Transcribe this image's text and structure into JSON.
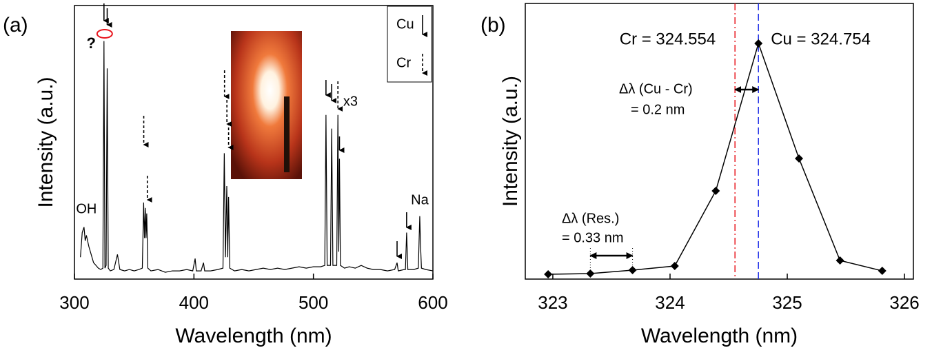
{
  "chart_data": [
    {
      "type": "line",
      "panel_label": "(a)",
      "xlabel": "Wavelength (nm)",
      "ylabel": "Intensity (a.u.)",
      "xlim": [
        300,
        600
      ],
      "xticks": [
        300,
        400,
        500,
        600
      ],
      "ylim": [
        0,
        100
      ],
      "x": [
        305,
        306.5,
        308,
        309,
        310,
        312,
        314,
        316,
        318,
        320,
        322,
        323.8,
        324.7,
        325.5,
        326.5,
        327.4,
        328.3,
        330,
        333,
        336,
        338,
        342,
        346,
        350,
        354,
        356.8,
        357.9,
        358.6,
        359.3,
        359.9,
        360.5,
        361.4,
        364,
        370,
        376,
        382,
        388,
        394,
        399,
        401,
        402,
        406,
        408,
        409,
        414,
        420,
        424.3,
        425.4,
        426.4,
        427.5,
        428.3,
        429,
        430,
        434,
        440,
        446,
        452,
        458,
        464,
        470,
        476,
        482,
        488,
        494,
        500,
        506,
        509.5,
        510.5,
        511.5,
        514.3,
        515.3,
        516.3,
        519.5,
        520.5,
        521.2,
        521.8,
        522.6,
        526,
        530,
        535,
        540,
        545,
        550,
        556,
        562,
        568,
        570,
        571,
        576,
        577,
        578,
        579,
        584,
        587.8,
        589,
        589.6,
        590.4,
        594,
        600
      ],
      "series": [
        {
          "color": "#000000",
          "values": [
            8,
            17,
            19,
            14,
            16,
            12,
            9,
            6,
            5,
            4,
            3.5,
            4,
            87,
            4,
            5,
            77,
            4,
            3,
            3.5,
            9,
            3.5,
            3,
            3.5,
            3,
            3.5,
            4,
            28,
            15,
            26,
            15,
            24,
            4,
            3,
            3.5,
            2.5,
            3,
            3,
            3.5,
            3,
            7.5,
            3,
            3,
            6,
            3,
            3,
            3.5,
            4,
            46,
            8,
            34,
            8,
            30,
            4,
            3,
            3.5,
            3,
            3.5,
            4,
            3.5,
            4,
            3.5,
            4,
            4.5,
            4,
            4.5,
            4.5,
            5,
            60,
            5,
            5,
            55,
            5,
            5,
            60,
            10,
            44,
            5,
            4,
            4.5,
            4,
            5,
            4,
            3.5,
            3.5,
            3,
            3.5,
            6,
            3,
            3.5,
            3.5,
            17,
            3.5,
            3.5,
            4,
            23,
            13,
            4,
            3.5,
            3
          ]
        }
      ],
      "annotations": [
        "?",
        "OH",
        "Na",
        "x3"
      ],
      "legend_entries": [
        {
          "label": "Cu",
          "style": "solid"
        },
        {
          "label": "Cr",
          "style": "dashed"
        }
      ]
    },
    {
      "type": "line",
      "panel_label": "(b)",
      "xlabel": "Wavelength (nm)",
      "ylabel": "Intensity (a.u.)",
      "xlim": [
        322.765,
        326.076
      ],
      "xticks": [
        323,
        324,
        325,
        326
      ],
      "ylim": [
        0,
        100
      ],
      "x": [
        322.96,
        323.32,
        323.68,
        324.04,
        324.39,
        324.754,
        325.1,
        325.45,
        325.81
      ],
      "series": [
        {
          "color": "#000000",
          "marker": "diamond",
          "values": [
            1.75,
            2,
            3.25,
            4.75,
            32,
            85.5,
            43.75,
            6.75,
            3
          ]
        }
      ],
      "vlines": [
        {
          "value": 324.554,
          "color": "#e8141c",
          "label": "Cr = 324.554",
          "style": "dashdot"
        },
        {
          "value": 324.754,
          "color": "#1f2ee8",
          "label": "Cu = 324.754",
          "style": "dashed"
        }
      ],
      "annotations": [
        "Δλ (Cu - Cr)",
        "= 0.2 nm",
        "Δλ (Res.)",
        "= 0.33 nm"
      ]
    }
  ]
}
